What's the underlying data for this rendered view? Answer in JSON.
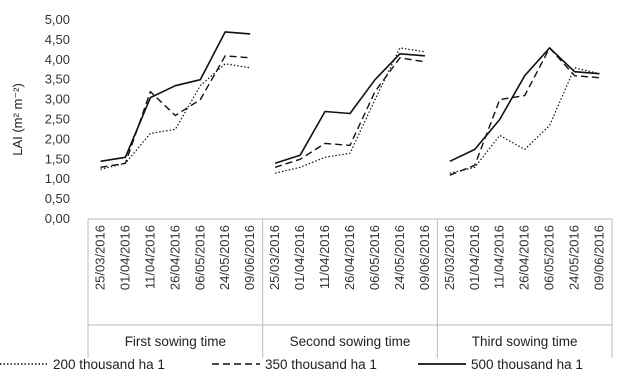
{
  "chart_data": {
    "type": "line",
    "ylabel": "LAI (m² m⁻²)",
    "ylim": [
      0,
      5
    ],
    "ytick_step": 0.5,
    "ytick_labels": [
      "0,00",
      "0,50",
      "1,00",
      "1,50",
      "2,00",
      "2,50",
      "3,00",
      "3,50",
      "4,00",
      "4,50",
      "5,00"
    ],
    "grid": false,
    "legend_position": "bottom",
    "colors": {
      "line": "#111111",
      "axis": "#bbbbbb",
      "text": "#333333"
    },
    "groups": [
      {
        "name": "First sowing time",
        "dates": [
          "25/03/2016",
          "01/04/2016",
          "11/04/2016",
          "26/04/2016",
          "06/05/2016",
          "24/05/2016",
          "09/06/2016"
        ],
        "series": [
          {
            "name": "200 thousand ha 1",
            "values": [
              1.25,
              1.4,
              2.15,
              2.25,
              3.35,
              3.9,
              3.8
            ]
          },
          {
            "name": "350 thousand ha 1",
            "values": [
              1.3,
              1.4,
              3.2,
              2.6,
              3.0,
              4.1,
              4.05
            ]
          },
          {
            "name": "500 thousand ha 1",
            "values": [
              1.45,
              1.55,
              3.05,
              3.35,
              3.5,
              4.7,
              4.65
            ]
          }
        ]
      },
      {
        "name": "Second sowing time",
        "dates": [
          "25/03/2016",
          "01/04/2016",
          "11/04/2016",
          "26/04/2016",
          "06/05/2016",
          "24/05/2016",
          "09/06/2016"
        ],
        "series": [
          {
            "name": "200 thousand ha 1",
            "values": [
              1.15,
              1.3,
              1.55,
              1.65,
              3.0,
              4.3,
              4.2
            ]
          },
          {
            "name": "350 thousand ha 1",
            "values": [
              1.3,
              1.5,
              1.9,
              1.85,
              3.2,
              4.05,
              3.95
            ]
          },
          {
            "name": "500 thousand ha 1",
            "values": [
              1.4,
              1.6,
              2.7,
              2.65,
              3.5,
              4.15,
              4.1
            ]
          }
        ]
      },
      {
        "name": "Third sowing time",
        "dates": [
          "25/03/2016",
          "01/04/2016",
          "11/04/2016",
          "26/04/2016",
          "06/05/2016",
          "24/05/2016",
          "09/06/2016"
        ],
        "series": [
          {
            "name": "200 thousand ha 1",
            "values": [
              1.15,
              1.3,
              2.1,
              1.75,
              2.35,
              3.8,
              3.65
            ]
          },
          {
            "name": "350 thousand ha 1",
            "values": [
              1.1,
              1.35,
              3.0,
              3.1,
              4.3,
              3.6,
              3.55
            ]
          },
          {
            "name": "500 thousand ha 1",
            "values": [
              1.45,
              1.75,
              2.5,
              3.6,
              4.3,
              3.7,
              3.65
            ]
          }
        ]
      }
    ],
    "legend": [
      {
        "label": "200 thousand ha 1",
        "style": "dotted"
      },
      {
        "label": "350 thousand ha 1",
        "style": "dashed"
      },
      {
        "label": "500 thousand ha 1",
        "style": "solid"
      }
    ]
  }
}
